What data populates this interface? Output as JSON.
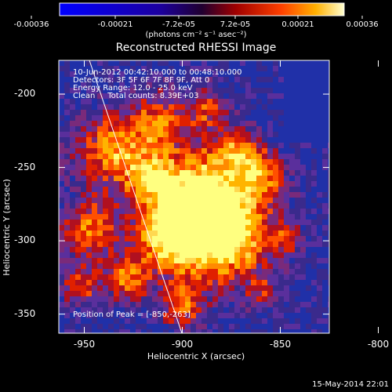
{
  "colorbar": {
    "ticks": [
      "-0.00036",
      "-0.00021",
      "-7.2e-05",
      "7.2e-05",
      "0.00021",
      "0.00036"
    ],
    "units": "(photons cm⁻² s⁻¹ asec⁻²)"
  },
  "title": "Reconstructed RHESSI Image",
  "info": {
    "time": "10-Jun-2012 00:42:10.000 to 00:48:10.000",
    "detectors": "Detectors: 3F 5F 6F 7F 8F 9F, Att 0",
    "energy": "Energy Range: 12.0 - 25.0 keV",
    "clean": "Clean     Total counts: 8.39E+03"
  },
  "peak": "Position of Peak = [-850,-263]",
  "axes": {
    "xlabel": "Heliocentric X (arcsec)",
    "ylabel": "Heliocentric Y (arcsec)",
    "xticks": [
      "-950",
      "-900",
      "-850",
      "-800"
    ],
    "xtick_values": [
      -950,
      -900,
      -850,
      -800
    ],
    "yticks": [
      "-200",
      "-250",
      "-300",
      "-350"
    ],
    "ytick_values": [
      -200,
      -250,
      -300,
      -350
    ],
    "xlim": [
      -963,
      -825
    ],
    "ylim": [
      -363,
      -177
    ]
  },
  "footer": "15-May-2014 22:01",
  "colors": {
    "background": "#000000",
    "limb_line": "#ffffff"
  }
}
